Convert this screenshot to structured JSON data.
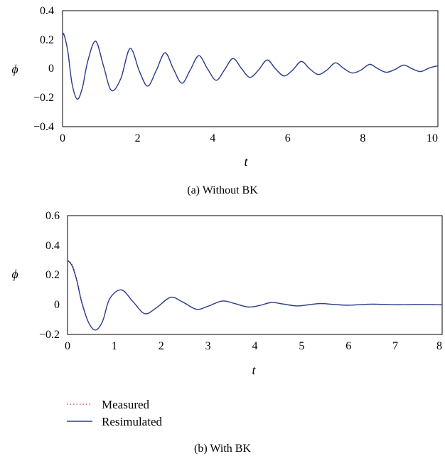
{
  "chart_data": [
    {
      "type": "line",
      "caption": "(a)  Without BK",
      "xlabel": "t",
      "ylabel": "ϕ",
      "xlim": [
        0,
        10
      ],
      "ylim": [
        -0.4,
        0.4
      ],
      "x_ticks": [
        "0",
        "2",
        "4",
        "6",
        "8",
        "10"
      ],
      "y_ticks": [
        "0.4",
        "0.2",
        "0",
        "−0.2",
        "−0.4"
      ],
      "grid": false,
      "series": [
        {
          "name": "Measured",
          "color": "#d23c5a",
          "style": "dotted",
          "x": [
            0,
            0.03,
            0.14,
            0.25,
            0.39,
            0.53,
            0.67,
            0.88,
            1.09,
            1.3,
            1.55,
            1.8,
            2.05,
            2.27,
            2.5,
            2.73,
            2.95,
            3.18,
            3.4,
            3.63,
            3.86,
            4.09,
            4.31,
            4.54,
            4.77,
            4.99,
            5.22,
            5.45,
            5.67,
            5.9,
            6.13,
            6.36,
            6.58,
            6.81,
            7.04,
            7.27,
            7.5,
            7.72,
            7.95,
            8.18,
            8.4,
            8.63,
            8.86,
            9.09,
            9.31,
            9.54,
            9.77,
            10.0
          ],
          "y": [
            0.21,
            0.24,
            0.12,
            -0.1,
            -0.21,
            -0.13,
            0.05,
            0.19,
            0.02,
            -0.15,
            -0.07,
            0.14,
            -0.02,
            -0.12,
            -0.01,
            0.11,
            0.0,
            -0.1,
            -0.01,
            0.09,
            0.0,
            -0.08,
            -0.01,
            0.07,
            0.0,
            -0.06,
            -0.01,
            0.06,
            0.0,
            -0.05,
            -0.01,
            0.05,
            0.0,
            -0.04,
            -0.01,
            0.04,
            0.0,
            -0.03,
            -0.01,
            0.03,
            0.0,
            -0.025,
            -0.005,
            0.025,
            0.0,
            -0.02,
            0.005,
            0.02
          ]
        },
        {
          "name": "Resimulated",
          "color": "#2a3f8f",
          "style": "solid",
          "x": [
            0,
            0.03,
            0.14,
            0.25,
            0.39,
            0.53,
            0.67,
            0.88,
            1.09,
            1.3,
            1.55,
            1.8,
            2.05,
            2.27,
            2.5,
            2.73,
            2.95,
            3.18,
            3.4,
            3.63,
            3.86,
            4.09,
            4.31,
            4.54,
            4.77,
            4.99,
            5.22,
            5.45,
            5.67,
            5.9,
            6.13,
            6.36,
            6.58,
            6.81,
            7.04,
            7.27,
            7.5,
            7.72,
            7.95,
            8.18,
            8.4,
            8.63,
            8.86,
            9.09,
            9.31,
            9.54,
            9.77,
            10.0
          ],
          "y": [
            0.21,
            0.24,
            0.12,
            -0.1,
            -0.21,
            -0.13,
            0.05,
            0.19,
            0.02,
            -0.15,
            -0.07,
            0.14,
            -0.02,
            -0.12,
            -0.01,
            0.11,
            0.0,
            -0.1,
            -0.01,
            0.09,
            0.0,
            -0.08,
            -0.01,
            0.07,
            0.0,
            -0.06,
            -0.01,
            0.06,
            0.0,
            -0.05,
            -0.01,
            0.05,
            0.0,
            -0.04,
            -0.01,
            0.04,
            0.0,
            -0.03,
            -0.01,
            0.03,
            0.0,
            -0.025,
            -0.005,
            0.025,
            0.0,
            -0.02,
            0.005,
            0.02
          ]
        }
      ]
    },
    {
      "type": "line",
      "caption": "(b)  With BK",
      "xlabel": "t",
      "ylabel": "ϕ",
      "xlim": [
        0,
        8
      ],
      "ylim": [
        -0.2,
        0.6
      ],
      "x_ticks": [
        "0",
        "1",
        "2",
        "3",
        "4",
        "5",
        "6",
        "7",
        "8"
      ],
      "y_ticks": [
        "0.6",
        "0.4",
        "0.2",
        "0",
        "−0.2"
      ],
      "grid": false,
      "series": [
        {
          "name": "Measured",
          "color": "#d23c5a",
          "style": "dotted",
          "x": [
            0,
            0.1,
            0.2,
            0.3,
            0.45,
            0.6,
            0.75,
            0.9,
            1.15,
            1.4,
            1.65,
            1.9,
            2.2,
            2.45,
            2.75,
            3.0,
            3.3,
            3.55,
            3.85,
            4.1,
            4.35,
            4.6,
            4.9,
            5.15,
            5.4,
            5.7,
            6.0,
            6.5,
            7.0,
            7.5,
            8.0
          ],
          "y": [
            0.3,
            0.27,
            0.17,
            0.03,
            -0.12,
            -0.17,
            -0.11,
            0.04,
            0.1,
            0.02,
            -0.06,
            -0.02,
            0.05,
            0.02,
            -0.03,
            -0.01,
            0.025,
            0.01,
            -0.015,
            -0.005,
            0.015,
            0.005,
            -0.008,
            0.0,
            0.008,
            0.002,
            -0.003,
            0.004,
            0.0,
            0.002,
            0.0
          ]
        },
        {
          "name": "Resimulated",
          "color": "#2a3f8f",
          "style": "solid",
          "x": [
            0,
            0.1,
            0.2,
            0.3,
            0.45,
            0.6,
            0.75,
            0.9,
            1.15,
            1.4,
            1.65,
            1.9,
            2.2,
            2.45,
            2.75,
            3.0,
            3.3,
            3.55,
            3.85,
            4.1,
            4.35,
            4.6,
            4.9,
            5.15,
            5.4,
            5.7,
            6.0,
            6.5,
            7.0,
            7.5,
            8.0
          ],
          "y": [
            0.3,
            0.26,
            0.16,
            0.02,
            -0.12,
            -0.17,
            -0.11,
            0.04,
            0.1,
            0.02,
            -0.06,
            -0.02,
            0.05,
            0.02,
            -0.03,
            -0.01,
            0.025,
            0.01,
            -0.015,
            -0.005,
            0.015,
            0.005,
            -0.008,
            0.0,
            0.008,
            0.002,
            -0.003,
            0.004,
            0.0,
            0.002,
            0.0
          ]
        }
      ]
    }
  ],
  "legend": {
    "placement": "bottom-left",
    "items": [
      {
        "label": "Measured",
        "color": "#d23c5a",
        "style": "dotted"
      },
      {
        "label": "Resimulated",
        "color": "#2a3f8f",
        "style": "solid"
      }
    ]
  }
}
